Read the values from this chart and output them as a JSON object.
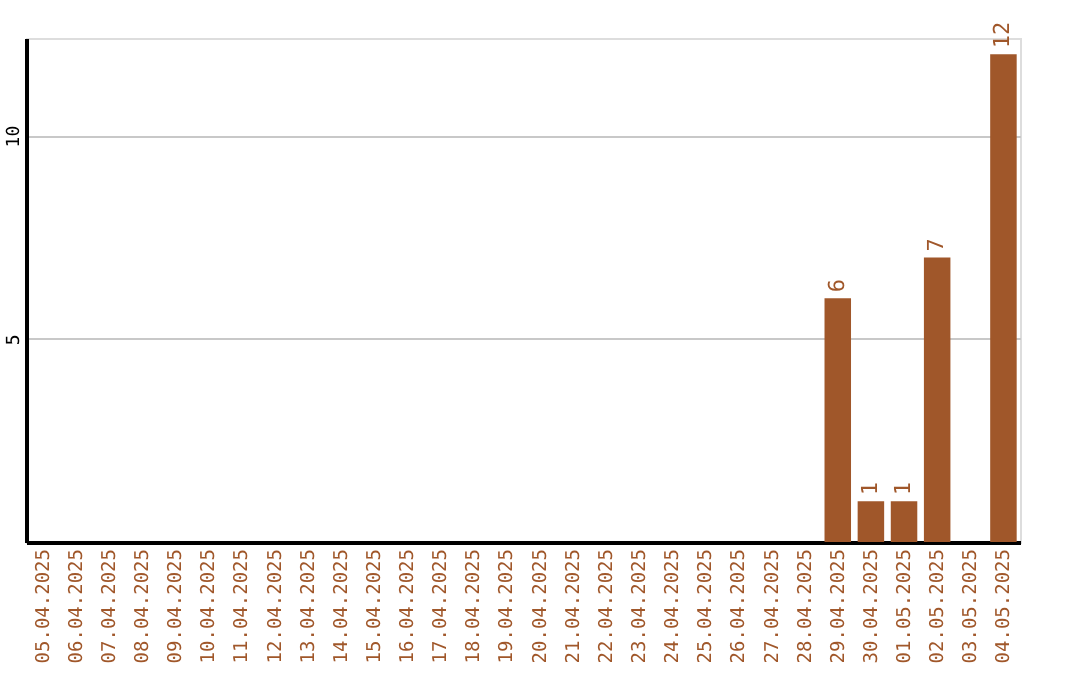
{
  "chart_data": {
    "type": "bar",
    "categories": [
      "05.04.2025",
      "06.04.2025",
      "07.04.2025",
      "08.04.2025",
      "09.04.2025",
      "10.04.2025",
      "11.04.2025",
      "12.04.2025",
      "13.04.2025",
      "14.04.2025",
      "15.04.2025",
      "16.04.2025",
      "17.04.2025",
      "18.04.2025",
      "19.04.2025",
      "20.04.2025",
      "21.04.2025",
      "22.04.2025",
      "23.04.2025",
      "24.04.2025",
      "25.04.2025",
      "26.04.2025",
      "27.04.2025",
      "28.04.2025",
      "29.04.2025",
      "30.04.2025",
      "01.05.2025",
      "02.05.2025",
      "03.05.2025",
      "04.05.2025"
    ],
    "values": [
      0,
      0,
      0,
      0,
      0,
      0,
      0,
      0,
      0,
      0,
      0,
      0,
      0,
      0,
      0,
      0,
      0,
      0,
      0,
      0,
      0,
      0,
      0,
      0,
      6,
      1,
      1,
      7,
      0,
      12
    ],
    "value_labels": [
      null,
      null,
      null,
      null,
      null,
      null,
      null,
      null,
      null,
      null,
      null,
      null,
      null,
      null,
      null,
      null,
      null,
      null,
      null,
      null,
      null,
      null,
      null,
      null,
      "6",
      "1",
      "1",
      "7",
      null,
      "12"
    ],
    "color": "#a0572a",
    "ylim": [
      0,
      12.4
    ],
    "yticks": [
      5,
      10
    ],
    "grid": "y"
  }
}
